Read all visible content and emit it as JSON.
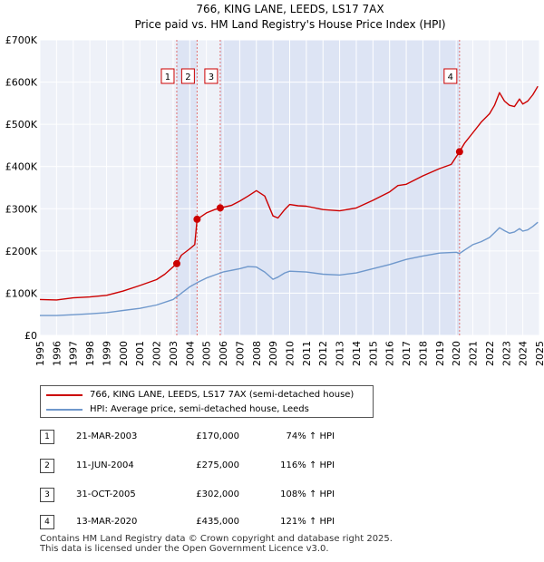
{
  "chart_data": {
    "type": "line",
    "title": "766, KING LANE, LEEDS, LS17 7AX",
    "subtitle": "Price paid vs. HM Land Registry's House Price Index (HPI)",
    "xlabel": "",
    "ylabel": "",
    "xlim": [
      1995,
      2025
    ],
    "ylim": [
      0,
      700000
    ],
    "y_ticks": [
      {
        "value": 0,
        "label": "£0"
      },
      {
        "value": 100000,
        "label": "£100K"
      },
      {
        "value": 200000,
        "label": "£200K"
      },
      {
        "value": 300000,
        "label": "£300K"
      },
      {
        "value": 400000,
        "label": "£400K"
      },
      {
        "value": 500000,
        "label": "£500K"
      },
      {
        "value": 600000,
        "label": "£600K"
      },
      {
        "value": 700000,
        "label": "£700K"
      }
    ],
    "x_ticks": [
      "1995",
      "1996",
      "1997",
      "1998",
      "1999",
      "2000",
      "2001",
      "2002",
      "2003",
      "2004",
      "2005",
      "2006",
      "2007",
      "2008",
      "2009",
      "2010",
      "2011",
      "2012",
      "2013",
      "2014",
      "2015",
      "2016",
      "2017",
      "2018",
      "2019",
      "2020",
      "2021",
      "2022",
      "2023",
      "2024",
      "2025"
    ],
    "grid": true,
    "shaded_periods": [
      [
        2003.22,
        2004.44
      ],
      [
        2005.83,
        2020.2
      ]
    ],
    "series": [
      {
        "name": "766, KING LANE, LEEDS, LS17 7AX (semi-detached house)",
        "color": "#cc0000",
        "x": [
          1995,
          1996,
          1997,
          1998,
          1999,
          2000,
          2001,
          2002,
          2002.5,
          2003.22,
          2003.5,
          2004,
          2004.3,
          2004.44,
          2005,
          2005.5,
          2005.83,
          2006.5,
          2007,
          2007.5,
          2008,
          2008.5,
          2009,
          2009.3,
          2009.7,
          2010,
          2010.5,
          2011,
          2012,
          2013,
          2014,
          2015,
          2016,
          2016.5,
          2017,
          2017.5,
          2018,
          2019,
          2019.7,
          2020.2,
          2020.5,
          2021,
          2021.5,
          2022,
          2022.3,
          2022.6,
          2022.9,
          2023.2,
          2023.5,
          2023.8,
          2024,
          2024.3,
          2024.6,
          2024.9
        ],
        "y": [
          85000,
          84000,
          89000,
          91000,
          95000,
          105000,
          118000,
          132000,
          145000,
          170000,
          190000,
          205000,
          215000,
          275000,
          290000,
          298000,
          302000,
          308000,
          318000,
          330000,
          343000,
          330000,
          283000,
          278000,
          298000,
          310000,
          307000,
          306000,
          298000,
          295000,
          302000,
          320000,
          340000,
          355000,
          358000,
          368000,
          378000,
          395000,
          405000,
          435000,
          455000,
          480000,
          505000,
          525000,
          545000,
          575000,
          555000,
          545000,
          542000,
          560000,
          548000,
          555000,
          570000,
          590000
        ]
      },
      {
        "name": "HPI: Average price, semi-detached house, Leeds",
        "color": "#6f98cc",
        "x": [
          1995,
          1996,
          1997,
          1998,
          1999,
          2000,
          2001,
          2002,
          2003,
          2003.5,
          2004,
          2004.5,
          2005,
          2005.5,
          2006,
          2007,
          2007.5,
          2008,
          2008.5,
          2009,
          2009.3,
          2009.7,
          2010,
          2011,
          2012,
          2013,
          2014,
          2015,
          2016,
          2017,
          2018,
          2019,
          2020,
          2020.2,
          2020.5,
          2021,
          2021.5,
          2022,
          2022.3,
          2022.6,
          2022.9,
          2023.2,
          2023.5,
          2023.8,
          2024,
          2024.3,
          2024.6,
          2024.9
        ],
        "y": [
          47000,
          47000,
          49000,
          51000,
          54000,
          59000,
          64000,
          72000,
          85000,
          100000,
          115000,
          126000,
          136000,
          143000,
          150000,
          158000,
          163000,
          162000,
          150000,
          133000,
          138000,
          148000,
          152000,
          150000,
          145000,
          143000,
          148000,
          158000,
          168000,
          180000,
          188000,
          195000,
          197000,
          194000,
          202000,
          215000,
          222000,
          232000,
          243000,
          255000,
          248000,
          242000,
          245000,
          253000,
          247000,
          250000,
          258000,
          268000
        ]
      }
    ],
    "sales": [
      {
        "num": "1",
        "x": 2003.22,
        "price": 170000,
        "date": "21-MAR-2003",
        "price_label": "£170,000",
        "hpi_label": "74% ↑ HPI"
      },
      {
        "num": "2",
        "x": 2004.44,
        "price": 275000,
        "date": "11-JUN-2004",
        "price_label": "£275,000",
        "hpi_label": "116% ↑ HPI"
      },
      {
        "num": "3",
        "x": 2005.83,
        "price": 302000,
        "date": "31-OCT-2005",
        "price_label": "£302,000",
        "hpi_label": "108% ↑ HPI"
      },
      {
        "num": "4",
        "x": 2020.2,
        "price": 435000,
        "date": "13-MAR-2020",
        "price_label": "£435,000",
        "hpi_label": "121% ↑ HPI"
      }
    ]
  },
  "legend": {
    "property_label": "766, KING LANE, LEEDS, LS17 7AX (semi-detached house)",
    "hpi_label": "HPI: Average price, semi-detached house, Leeds",
    "property_color": "#cc0000",
    "hpi_color": "#6f98cc"
  },
  "footer": {
    "line1": "Contains HM Land Registry data © Crown copyright and database right 2025.",
    "line2": "This data is licensed under the Open Government Licence v3.0."
  },
  "colors": {
    "plot_bg": "#eef1f8",
    "shade": "#dde4f4",
    "grid": "#ffffff",
    "vline": "#e07070"
  }
}
